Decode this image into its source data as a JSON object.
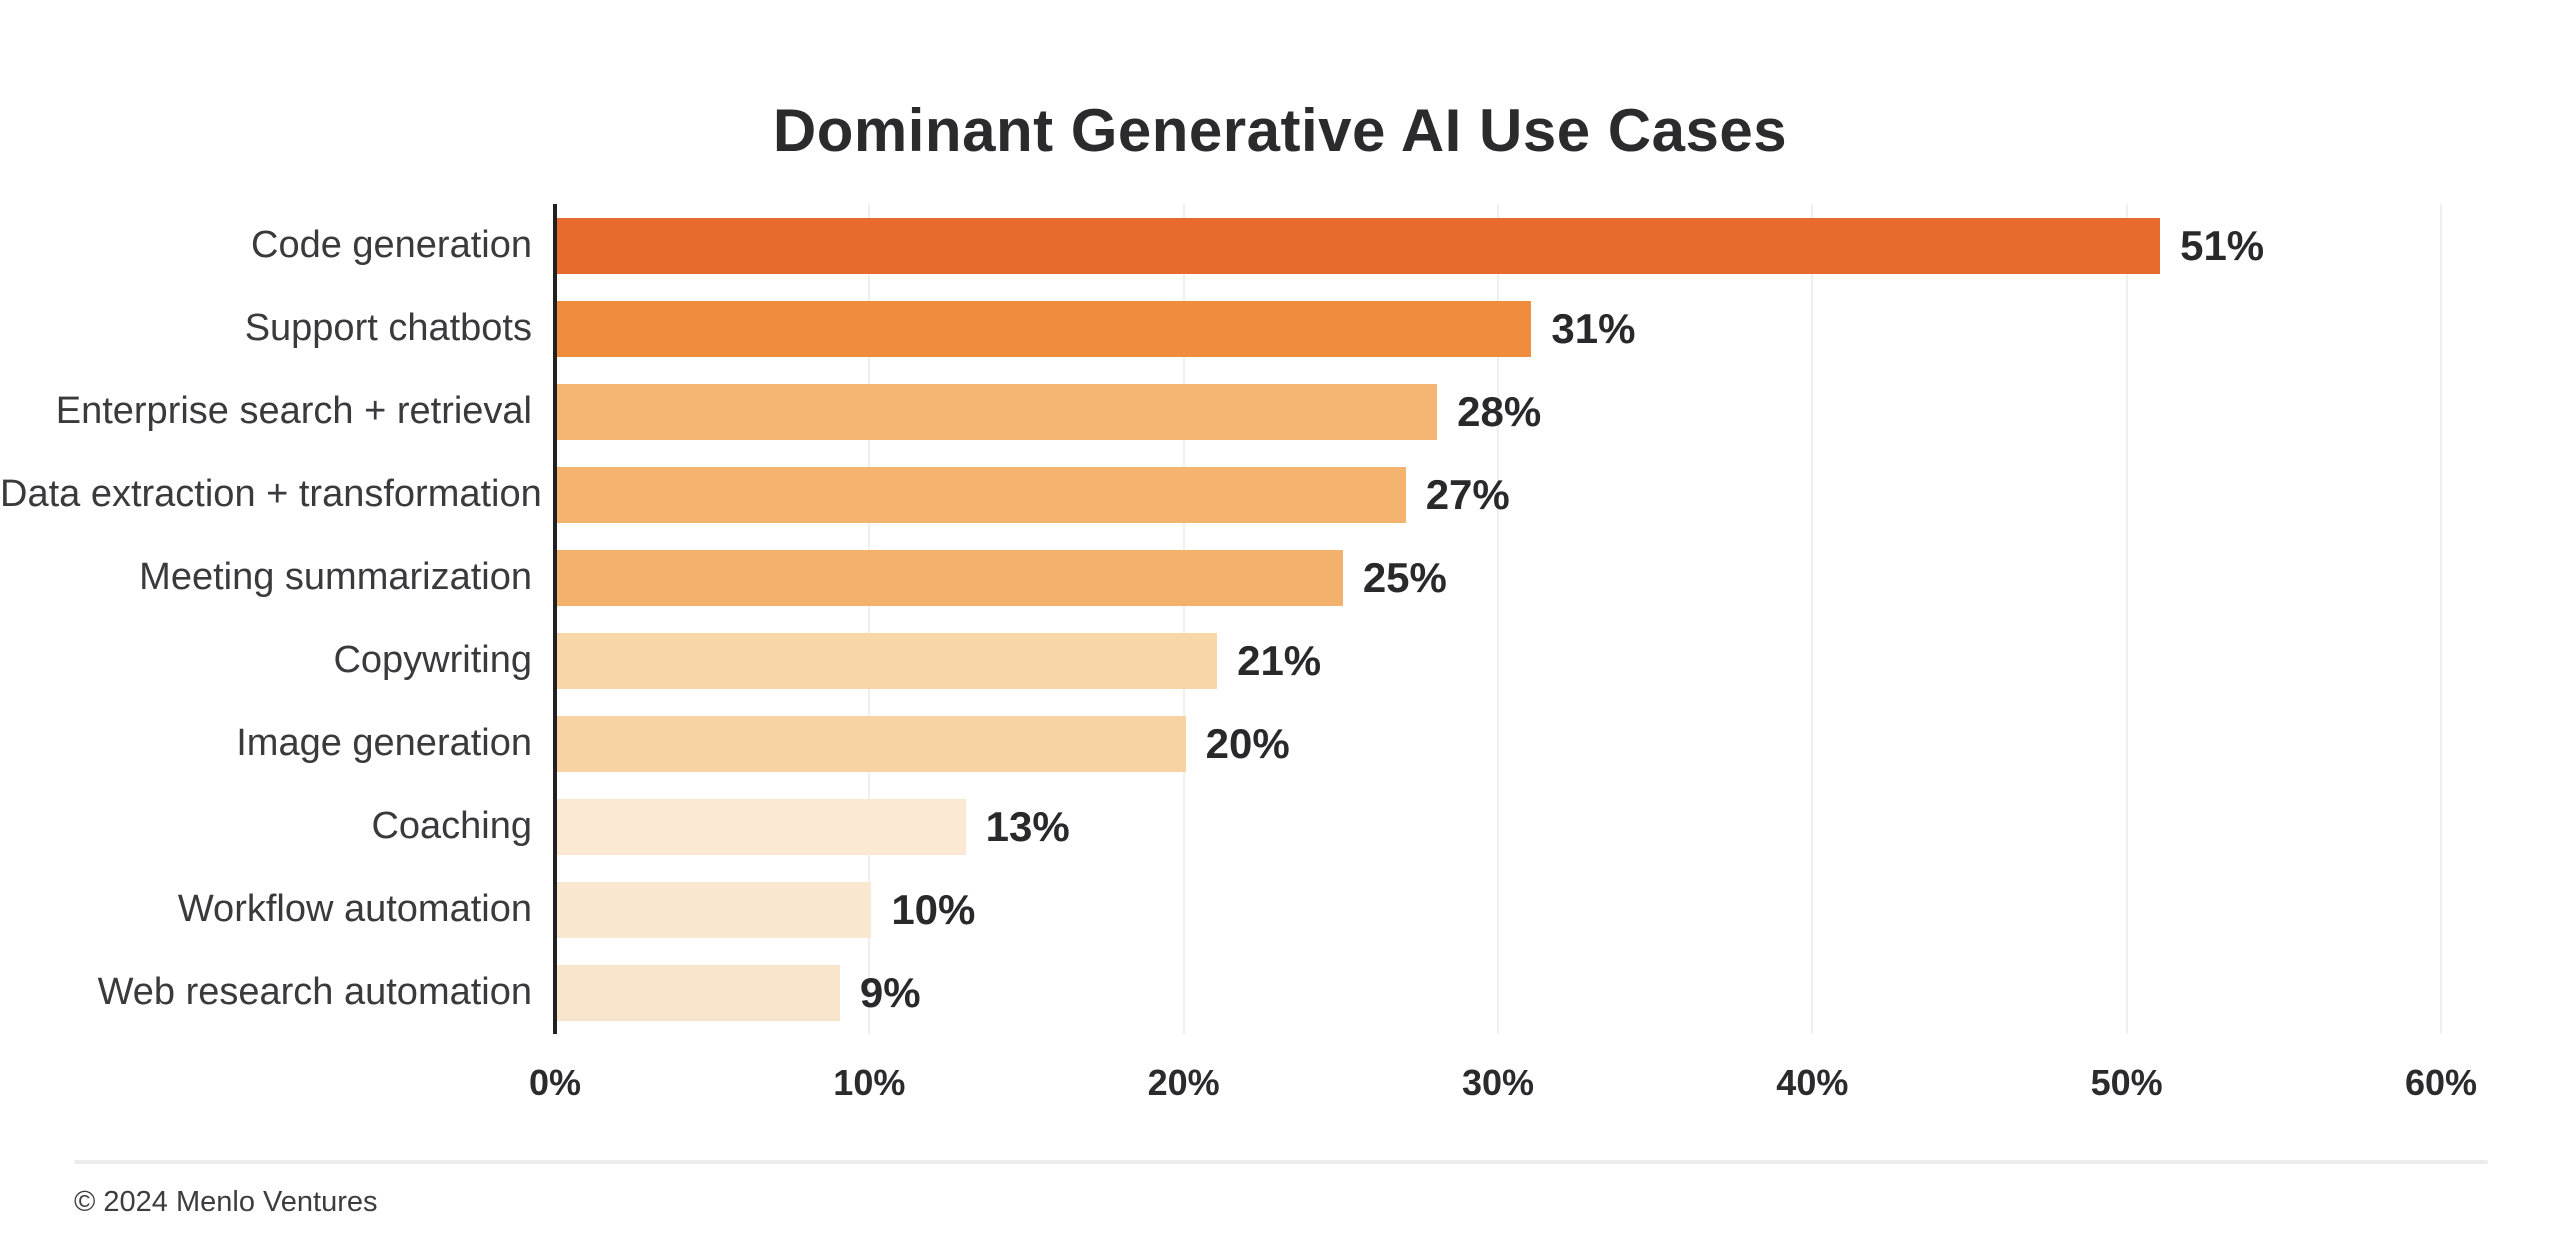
{
  "header": {
    "title": "Dominant Generative AI Use Cases"
  },
  "footer": {
    "copyright": "© 2024 Menlo Ventures"
  },
  "colors": {
    "background": "#ffffff",
    "title_text": "#2b2b2e",
    "category_text": "#3a3a3c",
    "value_text": "#29292b",
    "tick_text": "#2b2b2e",
    "axis_line": "#212124",
    "gridline": "#f1efed",
    "divider": "#ececec",
    "accent_dark_orange": "#e86a2c",
    "accent_light_peach": "#f9e5cc"
  },
  "chart_data": {
    "type": "bar",
    "orientation": "horizontal",
    "title": "Dominant Generative AI Use Cases",
    "xlabel": "",
    "ylabel": "",
    "categories": [
      "Code generation",
      "Support chatbots",
      "Enterprise search + retrieval",
      "Data extraction + transformation",
      "Meeting summarization",
      "Copywriting",
      "Image generation",
      "Coaching",
      "Workflow automation",
      "Web research automation"
    ],
    "values": [
      51,
      31,
      28,
      27,
      25,
      21,
      20,
      13,
      10,
      9
    ],
    "value_labels": [
      "51%",
      "31%",
      "28%",
      "27%",
      "25%",
      "21%",
      "20%",
      "13%",
      "10%",
      "9%"
    ],
    "bar_colors": [
      "#e86a2c",
      "#ef8c3d",
      "#f5b573",
      "#f4b470",
      "#f3b26c",
      "#f8d6a8",
      "#f7d3a3",
      "#fbe9d3",
      "#fae7d0",
      "#f9e5cc"
    ],
    "xlim": [
      0,
      60
    ],
    "x_ticks": [
      "0%",
      "10%",
      "20%",
      "30%",
      "40%",
      "50%",
      "60%"
    ],
    "x_tick_values": [
      0,
      10,
      20,
      30,
      40,
      50,
      60
    ],
    "grid": "vertical light gridlines at each 10% tick",
    "legend": "none",
    "value_label_position": "right of bar end"
  }
}
